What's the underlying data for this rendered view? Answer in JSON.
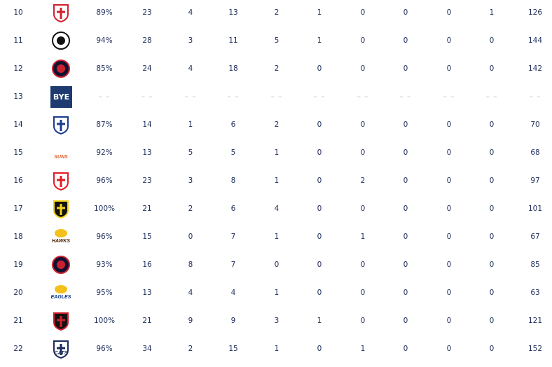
{
  "table": {
    "rows": [
      {
        "round": 10,
        "cells": [
          "89%",
          23,
          4,
          13,
          2,
          1,
          0,
          0,
          0,
          1,
          126
        ]
      },
      {
        "round": 11,
        "cells": [
          "94%",
          28,
          3,
          11,
          5,
          1,
          0,
          0,
          0,
          0,
          144
        ]
      },
      {
        "round": 12,
        "cells": [
          "85%",
          24,
          4,
          18,
          2,
          0,
          0,
          0,
          0,
          0,
          142
        ]
      },
      {
        "round": 13,
        "logo_text": "BYE",
        "cells": [
          "– –",
          "– –",
          "– –",
          "– –",
          "– –",
          "– –",
          "– –",
          "– –",
          "– –",
          "– –",
          "– –"
        ]
      },
      {
        "round": 14,
        "cells": [
          "87%",
          14,
          1,
          6,
          2,
          0,
          0,
          0,
          0,
          0,
          70
        ]
      },
      {
        "round": 15,
        "logo_text": "SUNS",
        "cells": [
          "92%",
          13,
          5,
          5,
          1,
          0,
          0,
          0,
          0,
          0,
          68
        ]
      },
      {
        "round": 16,
        "cells": [
          "96%",
          23,
          3,
          8,
          1,
          0,
          2,
          0,
          0,
          0,
          97
        ]
      },
      {
        "round": 17,
        "cells": [
          "100%",
          21,
          2,
          6,
          4,
          0,
          0,
          0,
          0,
          0,
          101
        ]
      },
      {
        "round": 18,
        "logo_text": "HAWKS",
        "cells": [
          "96%",
          15,
          0,
          7,
          1,
          0,
          1,
          0,
          0,
          0,
          67
        ]
      },
      {
        "round": 19,
        "cells": [
          "93%",
          16,
          8,
          7,
          0,
          0,
          0,
          0,
          0,
          0,
          85
        ]
      },
      {
        "round": 20,
        "logo_text": "EAGLES",
        "cells": [
          "95%",
          13,
          4,
          4,
          1,
          0,
          0,
          0,
          0,
          0,
          63
        ]
      },
      {
        "round": 21,
        "cells": [
          "100%",
          21,
          9,
          9,
          3,
          1,
          0,
          0,
          0,
          0,
          121
        ]
      },
      {
        "round": 22,
        "logo_text": "CATS",
        "cells": [
          "96%",
          34,
          2,
          15,
          1,
          0,
          1,
          0,
          0,
          0,
          152
        ]
      }
    ]
  }
}
